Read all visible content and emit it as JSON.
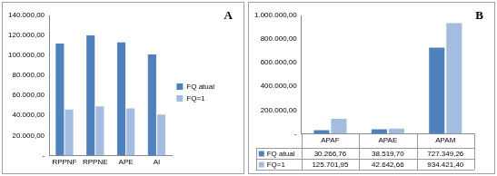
{
  "chart_data": [
    {
      "type": "bar",
      "annotations": [
        "A"
      ],
      "categories": [
        "RPPNF",
        "RPPNE",
        "APE",
        "AI"
      ],
      "series": [
        {
          "name": "FQ atual",
          "color": "#4F81BD",
          "values": [
            112000,
            120000,
            113000,
            101000
          ]
        },
        {
          "name": "FQ=1",
          "color": "#A3BCE0",
          "values": [
            46000,
            49000,
            47000,
            41000
          ]
        }
      ],
      "ylim": [
        0,
        140000
      ],
      "yticks": [
        {
          "value": 0,
          "label": "-"
        },
        {
          "value": 20000,
          "label": "20.000,00"
        },
        {
          "value": 40000,
          "label": "40.000,00"
        },
        {
          "value": 60000,
          "label": "60.000,00"
        },
        {
          "value": 80000,
          "label": "80.000,00"
        },
        {
          "value": 100000,
          "label": "100.000,00"
        },
        {
          "value": 120000,
          "label": "120.000,00"
        },
        {
          "value": 140000,
          "label": "140.000,00"
        }
      ],
      "grid": false,
      "legend": "right"
    },
    {
      "type": "bar",
      "annotations": [
        "B"
      ],
      "categories": [
        "APAF",
        "APAE",
        "APAM"
      ],
      "series": [
        {
          "name": "FQ atual",
          "color": "#4F81BD",
          "values": [
            30266.76,
            38519.7,
            727349.26
          ],
          "value_labels": [
            "30.266,76",
            "38.519,70",
            "727.349,26"
          ]
        },
        {
          "name": "FQ=1",
          "color": "#A3BCE0",
          "values": [
            125701.95,
            42642.66,
            934421.4
          ],
          "value_labels": [
            "125.701,95",
            "42.642,66",
            "934.421,40"
          ]
        }
      ],
      "ylim": [
        0,
        1000000
      ],
      "yticks": [
        {
          "value": 0,
          "label": "-"
        },
        {
          "value": 200000,
          "label": "200.000,00"
        },
        {
          "value": 400000,
          "label": "400.000,00"
        },
        {
          "value": 600000,
          "label": "600.000,00"
        },
        {
          "value": 800000,
          "label": "800.000,00"
        },
        {
          "value": 1000000,
          "label": "1.000.000,00"
        }
      ],
      "grid": false
    }
  ]
}
